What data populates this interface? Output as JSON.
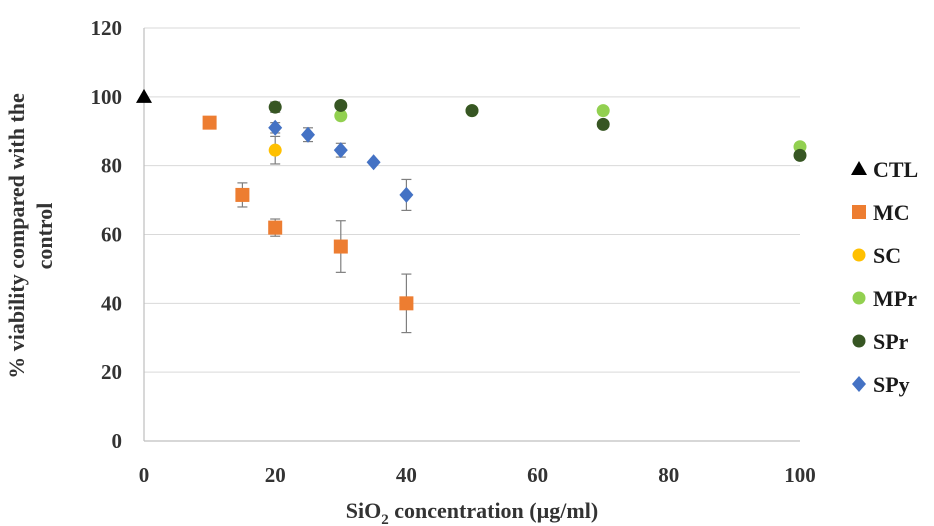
{
  "chart_data": {
    "type": "scatter",
    "title": "",
    "xlabel_main": "SiO",
    "xlabel_sub": "2",
    "xlabel_rest": " concentration (µg/ml)",
    "ylabel_line1": "% viability compared with the",
    "ylabel_line2": "control",
    "xlim": [
      0,
      100
    ],
    "ylim": [
      0,
      120
    ],
    "xticks": [
      "0",
      "20",
      "40",
      "60",
      "80",
      "100"
    ],
    "yticks": [
      "0",
      "20",
      "40",
      "60",
      "80",
      "100",
      "120"
    ],
    "grid": "horizontal",
    "legend_position": "right",
    "series": [
      {
        "name": "CTL",
        "marker": "triangle",
        "color": "#000000",
        "points": [
          {
            "x": 0,
            "y": 100
          }
        ]
      },
      {
        "name": "MC",
        "marker": "square",
        "color": "#ED7D31",
        "points": [
          {
            "x": 10,
            "y": 92.5
          },
          {
            "x": 15,
            "y": 71.5,
            "err": 3.5
          },
          {
            "x": 20,
            "y": 62,
            "err": 2.5
          },
          {
            "x": 30,
            "y": 56.5,
            "err": 7.5
          },
          {
            "x": 40,
            "y": 40,
            "err": 8.5
          }
        ]
      },
      {
        "name": "SC",
        "marker": "circle",
        "color": "#FFC000",
        "points": [
          {
            "x": 20,
            "y": 84.5,
            "err": 4
          }
        ]
      },
      {
        "name": "MPr",
        "marker": "circle",
        "color": "#92D050",
        "points": [
          {
            "x": 30,
            "y": 94.5
          },
          {
            "x": 50,
            "y": 96
          },
          {
            "x": 70,
            "y": 96
          },
          {
            "x": 100,
            "y": 85.5
          }
        ]
      },
      {
        "name": "SPr",
        "marker": "circle",
        "color": "#375623",
        "points": [
          {
            "x": 20,
            "y": 97,
            "err": 1.5
          },
          {
            "x": 30,
            "y": 97.5
          },
          {
            "x": 50,
            "y": 96
          },
          {
            "x": 70,
            "y": 92
          },
          {
            "x": 100,
            "y": 83
          }
        ]
      },
      {
        "name": "SPy",
        "marker": "diamond",
        "color": "#4472C4",
        "points": [
          {
            "x": 20,
            "y": 91,
            "err": 1.5
          },
          {
            "x": 25,
            "y": 89,
            "err": 2
          },
          {
            "x": 30,
            "y": 84.5,
            "err": 2
          },
          {
            "x": 35,
            "y": 81
          },
          {
            "x": 40,
            "y": 71.5,
            "err": 4.5
          }
        ]
      }
    ]
  }
}
